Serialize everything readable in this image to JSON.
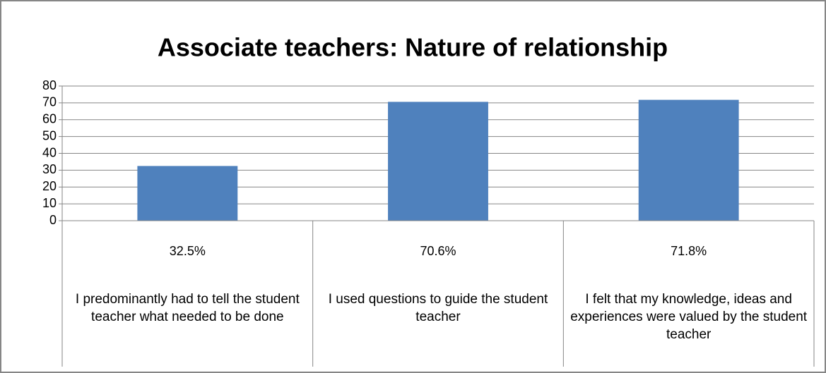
{
  "chart_data": {
    "type": "bar",
    "title": "Associate teachers: Nature of relationship",
    "categories": [
      "I predominantly had to tell the student teacher what needed to be done",
      "I used questions to guide the student teacher",
      "I felt that my knowledge, ideas and experiences were valued by the student teacher"
    ],
    "values": [
      32.5,
      70.6,
      71.8
    ],
    "value_labels": [
      "32.5%",
      "70.6%",
      "71.8%"
    ],
    "color": "#4f81bd",
    "ylim": [
      0,
      80
    ],
    "yticks": [
      0,
      10,
      20,
      30,
      40,
      50,
      60,
      70,
      80
    ],
    "grid": true
  }
}
